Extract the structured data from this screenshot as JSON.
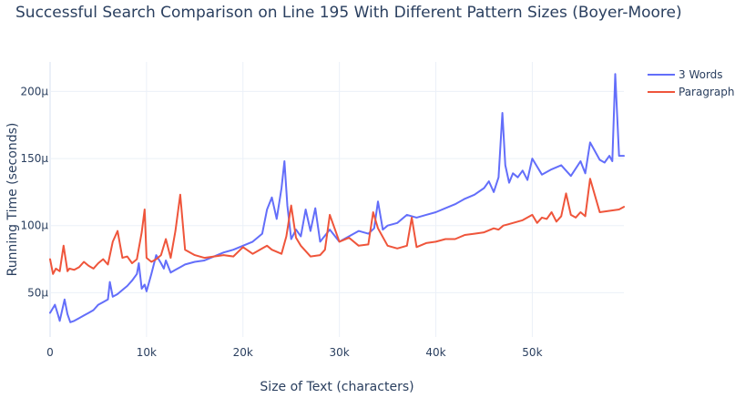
{
  "chart_data": {
    "type": "line",
    "title": "Successful Search Comparison on Line 195 With Different Pattern Sizes (Boyer-Moore)",
    "xlabel": "Size of Text (characters)",
    "ylabel": "Running Time (seconds)",
    "xlim": [
      0,
      59500
    ],
    "ylim": [
      1.7e-05,
      0.000222
    ],
    "x_ticks": [
      {
        "value": 0,
        "label": "0"
      },
      {
        "value": 10000,
        "label": "10k"
      },
      {
        "value": 20000,
        "label": "20k"
      },
      {
        "value": 30000,
        "label": "30k"
      },
      {
        "value": 40000,
        "label": "40k"
      },
      {
        "value": 50000,
        "label": "50k"
      }
    ],
    "y_ticks": [
      {
        "value": 5e-05,
        "label": "50μ"
      },
      {
        "value": 0.0001,
        "label": "100μ"
      },
      {
        "value": 0.00015,
        "label": "150μ"
      },
      {
        "value": 0.0002,
        "label": "200μ"
      }
    ],
    "grid": true,
    "legend_position": "top-right",
    "series": [
      {
        "name": "3 Words",
        "color": "#636efa",
        "x": [
          0,
          500,
          800,
          1000,
          1500,
          1800,
          2100,
          2500,
          3000,
          3500,
          4000,
          4500,
          5000,
          5500,
          6000,
          6200,
          6500,
          7000,
          7500,
          8000,
          8500,
          9000,
          9200,
          9500,
          9800,
          10000,
          10500,
          11000,
          11500,
          11800,
          12000,
          12500,
          13000,
          13500,
          14000,
          15000,
          16000,
          17000,
          18000,
          19000,
          20000,
          21000,
          22000,
          22500,
          23000,
          23500,
          24000,
          24300,
          24600,
          25000,
          25500,
          26000,
          26500,
          27000,
          27500,
          28000,
          29000,
          30000,
          31000,
          32000,
          33000,
          33600,
          34000,
          34500,
          35000,
          36000,
          37000,
          38000,
          39000,
          40000,
          41000,
          42000,
          43000,
          44000,
          45000,
          45500,
          46000,
          46500,
          46900,
          47200,
          47600,
          48000,
          48500,
          49000,
          49500,
          50000,
          51000,
          52000,
          53000,
          54000,
          55000,
          55500,
          56000,
          57000,
          57500,
          58000,
          58300,
          58600,
          59000,
          59500
        ],
        "values": [
          3.5e-05,
          4.1e-05,
          3.4e-05,
          2.9e-05,
          4.5e-05,
          3.4e-05,
          2.8e-05,
          2.9e-05,
          3.1e-05,
          3.3e-05,
          3.5e-05,
          3.7e-05,
          4.1e-05,
          4.3e-05,
          4.5e-05,
          5.8e-05,
          4.7e-05,
          4.9e-05,
          5.2e-05,
          5.5e-05,
          5.9e-05,
          6.4e-05,
          7.2e-05,
          5.3e-05,
          5.6e-05,
          5.1e-05,
          6.4e-05,
          7.8e-05,
          7.2e-05,
          6.8e-05,
          7.4e-05,
          6.5e-05,
          6.7e-05,
          6.9e-05,
          7.1e-05,
          7.3e-05,
          7.4e-05,
          7.7e-05,
          8e-05,
          8.2e-05,
          8.5e-05,
          8.8e-05,
          9.4e-05,
          0.000112,
          0.000121,
          0.000105,
          0.000128,
          0.000148,
          0.000115,
          9e-05,
          9.7e-05,
          9.2e-05,
          0.000112,
          9.6e-05,
          0.000113,
          8.8e-05,
          9.7e-05,
          8.8e-05,
          9.2e-05,
          9.6e-05,
          9.4e-05,
          9.8e-05,
          0.000118,
          9.7e-05,
          0.0001,
          0.000102,
          0.000108,
          0.000106,
          0.000108,
          0.00011,
          0.000113,
          0.000116,
          0.00012,
          0.000123,
          0.000128,
          0.000133,
          0.000125,
          0.000136,
          0.000184,
          0.000145,
          0.000132,
          0.000139,
          0.000136,
          0.000141,
          0.000134,
          0.00015,
          0.000138,
          0.000142,
          0.000145,
          0.000137,
          0.000148,
          0.000139,
          0.000162,
          0.000149,
          0.000147,
          0.000152,
          0.000148,
          0.000213,
          0.000152,
          0.000152
        ]
      },
      {
        "name": "Paragraph",
        "color": "#ef553b",
        "x": [
          0,
          300,
          600,
          1000,
          1400,
          1800,
          2000,
          2500,
          3000,
          3500,
          4000,
          4500,
          5000,
          5500,
          6000,
          6500,
          7000,
          7500,
          8000,
          8500,
          9000,
          9500,
          9800,
          10000,
          10500,
          11000,
          11500,
          12000,
          12500,
          13000,
          13500,
          14000,
          15000,
          16000,
          17000,
          18000,
          19000,
          20000,
          21000,
          22000,
          22500,
          23000,
          24000,
          24500,
          25000,
          25500,
          26000,
          27000,
          28000,
          28500,
          29000,
          30000,
          31000,
          32000,
          33000,
          33500,
          34000,
          35000,
          36000,
          37000,
          37500,
          38000,
          39000,
          40000,
          41000,
          42000,
          43000,
          44000,
          45000,
          46000,
          46500,
          47000,
          47500,
          48000,
          49000,
          50000,
          50500,
          51000,
          51500,
          52000,
          52500,
          53000,
          53500,
          54000,
          54500,
          55000,
          55500,
          56000,
          57000,
          58000,
          59000,
          59500
        ],
        "values": [
          7.5e-05,
          6.4e-05,
          6.8e-05,
          6.6e-05,
          8.5e-05,
          6.6e-05,
          6.8e-05,
          6.7e-05,
          6.9e-05,
          7.3e-05,
          7e-05,
          6.8e-05,
          7.2e-05,
          7.5e-05,
          7.1e-05,
          8.8e-05,
          9.6e-05,
          7.6e-05,
          7.7e-05,
          7.2e-05,
          7.5e-05,
          9.5e-05,
          0.000112,
          7.6e-05,
          7.3e-05,
          7.5e-05,
          7.8e-05,
          9e-05,
          7.6e-05,
          9.6e-05,
          0.000123,
          8.2e-05,
          7.8e-05,
          7.6e-05,
          7.7e-05,
          7.8e-05,
          7.7e-05,
          8.4e-05,
          7.9e-05,
          8.3e-05,
          8.5e-05,
          8.2e-05,
          7.9e-05,
          9.2e-05,
          0.000115,
          9.1e-05,
          8.5e-05,
          7.7e-05,
          7.8e-05,
          8.2e-05,
          0.000108,
          8.8e-05,
          9.1e-05,
          8.5e-05,
          8.6e-05,
          0.00011,
          9.8e-05,
          8.5e-05,
          8.3e-05,
          8.5e-05,
          0.000106,
          8.4e-05,
          8.7e-05,
          8.8e-05,
          9e-05,
          9e-05,
          9.3e-05,
          9.4e-05,
          9.5e-05,
          9.8e-05,
          9.7e-05,
          0.0001,
          0.000101,
          0.000102,
          0.000104,
          0.000108,
          0.000102,
          0.000106,
          0.000105,
          0.00011,
          0.000103,
          0.000107,
          0.000124,
          0.000108,
          0.000106,
          0.00011,
          0.000107,
          0.000135,
          0.00011,
          0.000111,
          0.000112,
          0.000114
        ]
      }
    ]
  }
}
